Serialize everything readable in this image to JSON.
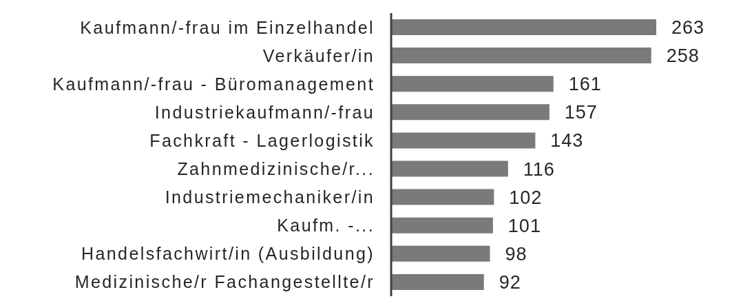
{
  "chart_data": {
    "type": "bar",
    "orientation": "horizontal",
    "categories": [
      "Kaufmann/-frau im Einzelhandel",
      "Verkäufer/in",
      "Kaufmann/-frau - Büromanagement",
      "Industriekaufmann/-frau",
      "Fachkraft - Lagerlogistik",
      "Zahnmedizinische/r...",
      "Industriemechaniker/in",
      "Kaufm. -...",
      "Handelsfachwirt/in (Ausbildung)",
      "Medizinische/r Fachangestellte/r"
    ],
    "values": [
      263,
      258,
      161,
      157,
      143,
      116,
      102,
      101,
      98,
      92
    ],
    "color": "#7a7a7a",
    "data_labels": true
  }
}
